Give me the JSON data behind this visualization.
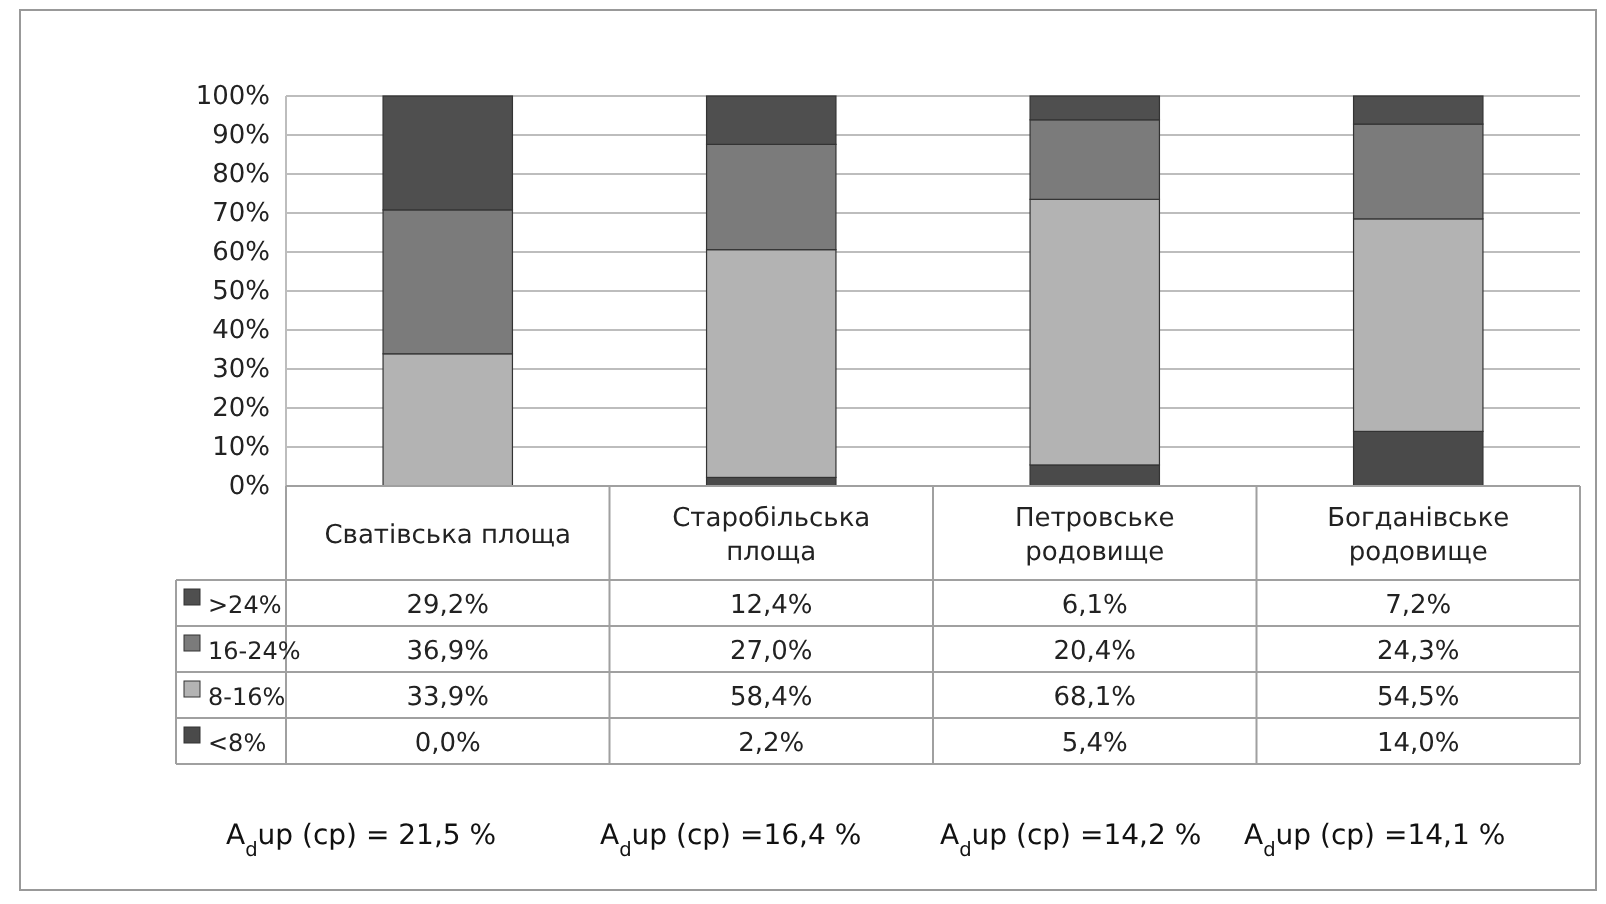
{
  "chart_data": {
    "type": "bar",
    "stacked": true,
    "categories": [
      "Сватівська площа",
      "Старобільська площа",
      "Петровське родовище",
      "Богданівське родовище"
    ],
    "series": [
      {
        "name": "<8%",
        "color": "#4a4a4a",
        "values": [
          0.0,
          2.2,
          5.4,
          14.0
        ],
        "value_labels": [
          "0,0%",
          "2,2%",
          "5,4%",
          "14,0%"
        ]
      },
      {
        "name": "8-16%",
        "color": "#b3b3b3",
        "values": [
          33.9,
          58.4,
          68.1,
          54.5
        ],
        "value_labels": [
          "33,9%",
          "58,4%",
          "68,1%",
          "54,5%"
        ]
      },
      {
        "name": "16-24%",
        "color": "#7b7b7b",
        "values": [
          36.9,
          27.0,
          20.4,
          24.3
        ],
        "value_labels": [
          "36,9%",
          "27,0%",
          "20,4%",
          "24,3%"
        ]
      },
      {
        "name": ">24%",
        "color": "#4f4f4f",
        "values": [
          29.2,
          12.4,
          6.1,
          7.2
        ],
        "value_labels": [
          "29,2%",
          "12,4%",
          "6,1%",
          "7,2%"
        ]
      }
    ],
    "ylim": [
      0,
      100
    ],
    "yticks": [
      {
        "value": 0,
        "label": "0%"
      },
      {
        "value": 10,
        "label": "10%"
      },
      {
        "value": 20,
        "label": "20%"
      },
      {
        "value": 30,
        "label": "30%"
      },
      {
        "value": 40,
        "label": "40%"
      },
      {
        "value": 50,
        "label": "50%"
      },
      {
        "value": 60,
        "label": "60%"
      },
      {
        "value": 70,
        "label": "70%"
      },
      {
        "value": 80,
        "label": "80%"
      },
      {
        "value": 90,
        "label": "90%"
      },
      {
        "value": 100,
        "label": "100%"
      }
    ],
    "grid": "y",
    "legend": "bottom",
    "annotations": [
      "A$_{d}$up (ср) = 21,5 %",
      "A$_{d}$up (ср) =16,4 %",
      "A$_{d}$up (ср) =14,2 %",
      "A$_{d}$up (ср) =14,1 %"
    ]
  }
}
